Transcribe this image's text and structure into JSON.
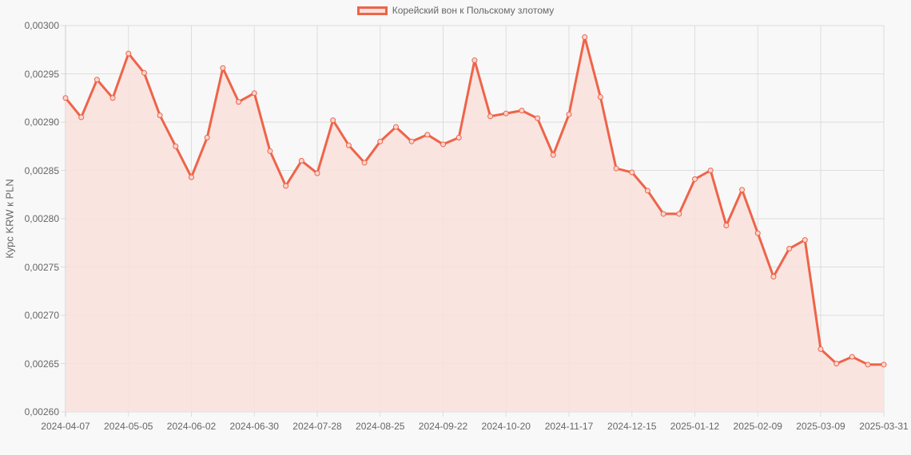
{
  "chart_data": {
    "type": "line",
    "title": "",
    "legend": [
      "Корейский вон к Польскому злотому"
    ],
    "legend_position": "top",
    "xlabel": "",
    "ylabel": "Курс KRW к PLN",
    "ylim": [
      0.0026,
      0.003
    ],
    "grid": true,
    "yticks": [
      "0,00300",
      "0,00295",
      "0,00290",
      "0,00285",
      "0,00280",
      "0,00275",
      "0,00270",
      "0,00265",
      "0,00260"
    ],
    "xticks": [
      "2024-04-07",
      "2024-05-05",
      "2024-06-02",
      "2024-06-30",
      "2024-07-28",
      "2024-08-25",
      "2024-09-22",
      "2024-10-20",
      "2024-11-17",
      "2024-12-15",
      "2025-01-12",
      "2025-02-09",
      "2025-03-09",
      "2025-03-31"
    ],
    "x": [
      "2024-04-07",
      "2024-04-14",
      "2024-04-21",
      "2024-04-28",
      "2024-05-05",
      "2024-05-12",
      "2024-05-19",
      "2024-05-26",
      "2024-06-02",
      "2024-06-09",
      "2024-06-16",
      "2024-06-23",
      "2024-06-30",
      "2024-07-07",
      "2024-07-14",
      "2024-07-21",
      "2024-07-28",
      "2024-08-04",
      "2024-08-11",
      "2024-08-18",
      "2024-08-25",
      "2024-09-01",
      "2024-09-08",
      "2024-09-15",
      "2024-09-22",
      "2024-09-29",
      "2024-10-06",
      "2024-10-13",
      "2024-10-20",
      "2024-10-27",
      "2024-11-03",
      "2024-11-10",
      "2024-11-17",
      "2024-11-24",
      "2024-12-01",
      "2024-12-08",
      "2024-12-15",
      "2024-12-22",
      "2024-12-29",
      "2025-01-05",
      "2025-01-12",
      "2025-01-19",
      "2025-01-26",
      "2025-02-02",
      "2025-02-09",
      "2025-02-16",
      "2025-02-23",
      "2025-03-02",
      "2025-03-09",
      "2025-03-16",
      "2025-03-23",
      "2025-03-30",
      "2025-03-31"
    ],
    "series": [
      {
        "name": "Корейский вон к Польскому злотому",
        "color": "#ee6449",
        "fill": "#f9e1dc",
        "values": [
          0.002925,
          0.002905,
          0.002944,
          0.002925,
          0.002971,
          0.002951,
          0.002907,
          0.002875,
          0.002843,
          0.002884,
          0.002956,
          0.002921,
          0.00293,
          0.00287,
          0.002834,
          0.00286,
          0.002847,
          0.002902,
          0.002876,
          0.002858,
          0.00288,
          0.002895,
          0.00288,
          0.002887,
          0.002877,
          0.002884,
          0.002964,
          0.002906,
          0.002909,
          0.002912,
          0.002904,
          0.002866,
          0.002908,
          0.002988,
          0.002926,
          0.002852,
          0.002848,
          0.002829,
          0.002805,
          0.002805,
          0.002841,
          0.00285,
          0.002793,
          0.00283,
          0.002785,
          0.00274,
          0.002769,
          0.002778,
          0.002665,
          0.00265,
          0.002657,
          0.002649,
          0.002649
        ]
      }
    ]
  }
}
